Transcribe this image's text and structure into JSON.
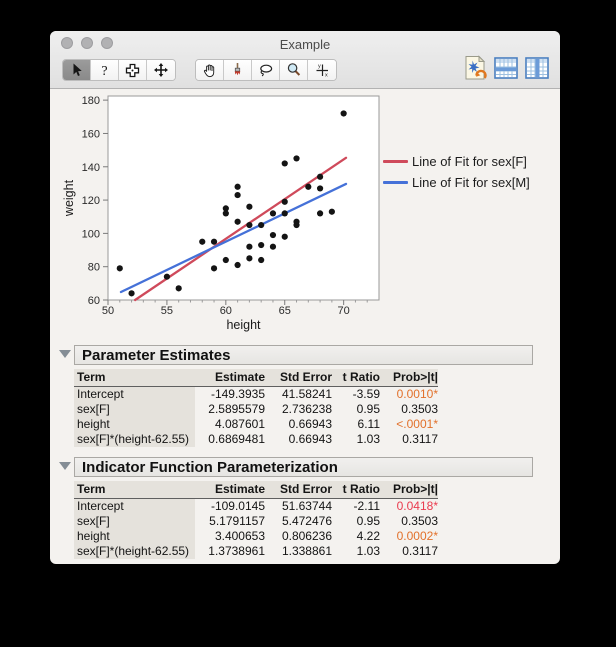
{
  "window": {
    "title": "Example"
  },
  "toolbar": {
    "tools": [
      {
        "name": "arrow-tool",
        "selected": true
      },
      {
        "name": "help-tool",
        "selected": false
      },
      {
        "name": "selection-tool",
        "selected": false
      },
      {
        "name": "scroller-tool",
        "selected": false
      },
      {
        "name": "grabber-hand-tool",
        "selected": false
      },
      {
        "name": "brush-tool",
        "selected": false
      },
      {
        "name": "lasso-tool",
        "selected": false
      },
      {
        "name": "magnifier-tool",
        "selected": false
      },
      {
        "name": "crosshair-tool",
        "selected": false
      }
    ],
    "actions": [
      "rerun-script-icon",
      "data-table-rows-icon",
      "data-table-columns-icon"
    ]
  },
  "chart_data": {
    "type": "scatter",
    "xlabel": "height",
    "ylabel": "weight",
    "xlim": [
      50,
      73
    ],
    "ylim": [
      60,
      182.5
    ],
    "x_major_ticks": [
      50,
      55,
      60,
      65,
      70
    ],
    "x_minor_step": 1,
    "y_major_ticks": [
      60,
      80,
      100,
      120,
      140,
      160,
      180
    ],
    "grid": false,
    "legend_position": "right-top",
    "point_color": "#141414",
    "points": [
      [
        51,
        79
      ],
      [
        52,
        64
      ],
      [
        55,
        74
      ],
      [
        56,
        67
      ],
      [
        58,
        95
      ],
      [
        59,
        95
      ],
      [
        59,
        79
      ],
      [
        60,
        84
      ],
      [
        60,
        112
      ],
      [
        60,
        115
      ],
      [
        61,
        128
      ],
      [
        61,
        123
      ],
      [
        61,
        107
      ],
      [
        61,
        81
      ],
      [
        62,
        116
      ],
      [
        62,
        105
      ],
      [
        62,
        92
      ],
      [
        62,
        85
      ],
      [
        63,
        105
      ],
      [
        63,
        93
      ],
      [
        63,
        84
      ],
      [
        64,
        112
      ],
      [
        64,
        99
      ],
      [
        64,
        92
      ],
      [
        65,
        142
      ],
      [
        65,
        119
      ],
      [
        65,
        112
      ],
      [
        65,
        98
      ],
      [
        66,
        145
      ],
      [
        66,
        107
      ],
      [
        66,
        105
      ],
      [
        67,
        128
      ],
      [
        68,
        134
      ],
      [
        68,
        127
      ],
      [
        68,
        112
      ],
      [
        69,
        113
      ],
      [
        70,
        172
      ]
    ],
    "series": [
      {
        "name": "Line of Fit for sex[F]",
        "type": "line",
        "color": "#cf4a5b",
        "x": [
          52.3,
          70.2
        ],
        "y": [
          60,
          145.4
        ]
      },
      {
        "name": "Line of Fit for sex[M]",
        "type": "line",
        "color": "#4571d8",
        "x": [
          51.1,
          70.2
        ],
        "y": [
          64.8,
          129.7
        ]
      }
    ]
  },
  "sections": [
    {
      "title": "Parameter Estimates",
      "columns": [
        "Term",
        "Estimate",
        "Std Error",
        "t Ratio",
        "Prob>|t|"
      ],
      "rows": [
        {
          "cells": [
            "Intercept",
            "-149.3935",
            "41.58241",
            "-3.59",
            "0.0010*"
          ],
          "prob_class": "sig-o"
        },
        {
          "cells": [
            "sex[F]",
            "2.5895579",
            "2.736238",
            "0.95",
            "0.3503"
          ],
          "prob_class": ""
        },
        {
          "cells": [
            "height",
            "4.087601",
            "0.66943",
            "6.11",
            "<.0001*"
          ],
          "prob_class": "sig-o"
        },
        {
          "cells": [
            "sex[F]*(height-62.55)",
            "0.6869481",
            "0.66943",
            "1.03",
            "0.3117"
          ],
          "prob_class": ""
        }
      ]
    },
    {
      "title": "Indicator Function Parameterization",
      "columns": [
        "Term",
        "Estimate",
        "Std Error",
        "t Ratio",
        "Prob>|t|"
      ],
      "rows": [
        {
          "cells": [
            "Intercept",
            "-109.0145",
            "51.63744",
            "-2.11",
            "0.0418*"
          ],
          "prob_class": "sig-r"
        },
        {
          "cells": [
            "sex[F]",
            "5.1791157",
            "5.472476",
            "0.95",
            "0.3503"
          ],
          "prob_class": ""
        },
        {
          "cells": [
            "height",
            "3.400653",
            "0.806236",
            "4.22",
            "0.0002*"
          ],
          "prob_class": "sig-o"
        },
        {
          "cells": [
            "sex[F]*(height-62.55)",
            "1.3738961",
            "1.338861",
            "1.03",
            "0.3117"
          ],
          "prob_class": ""
        }
      ]
    }
  ]
}
